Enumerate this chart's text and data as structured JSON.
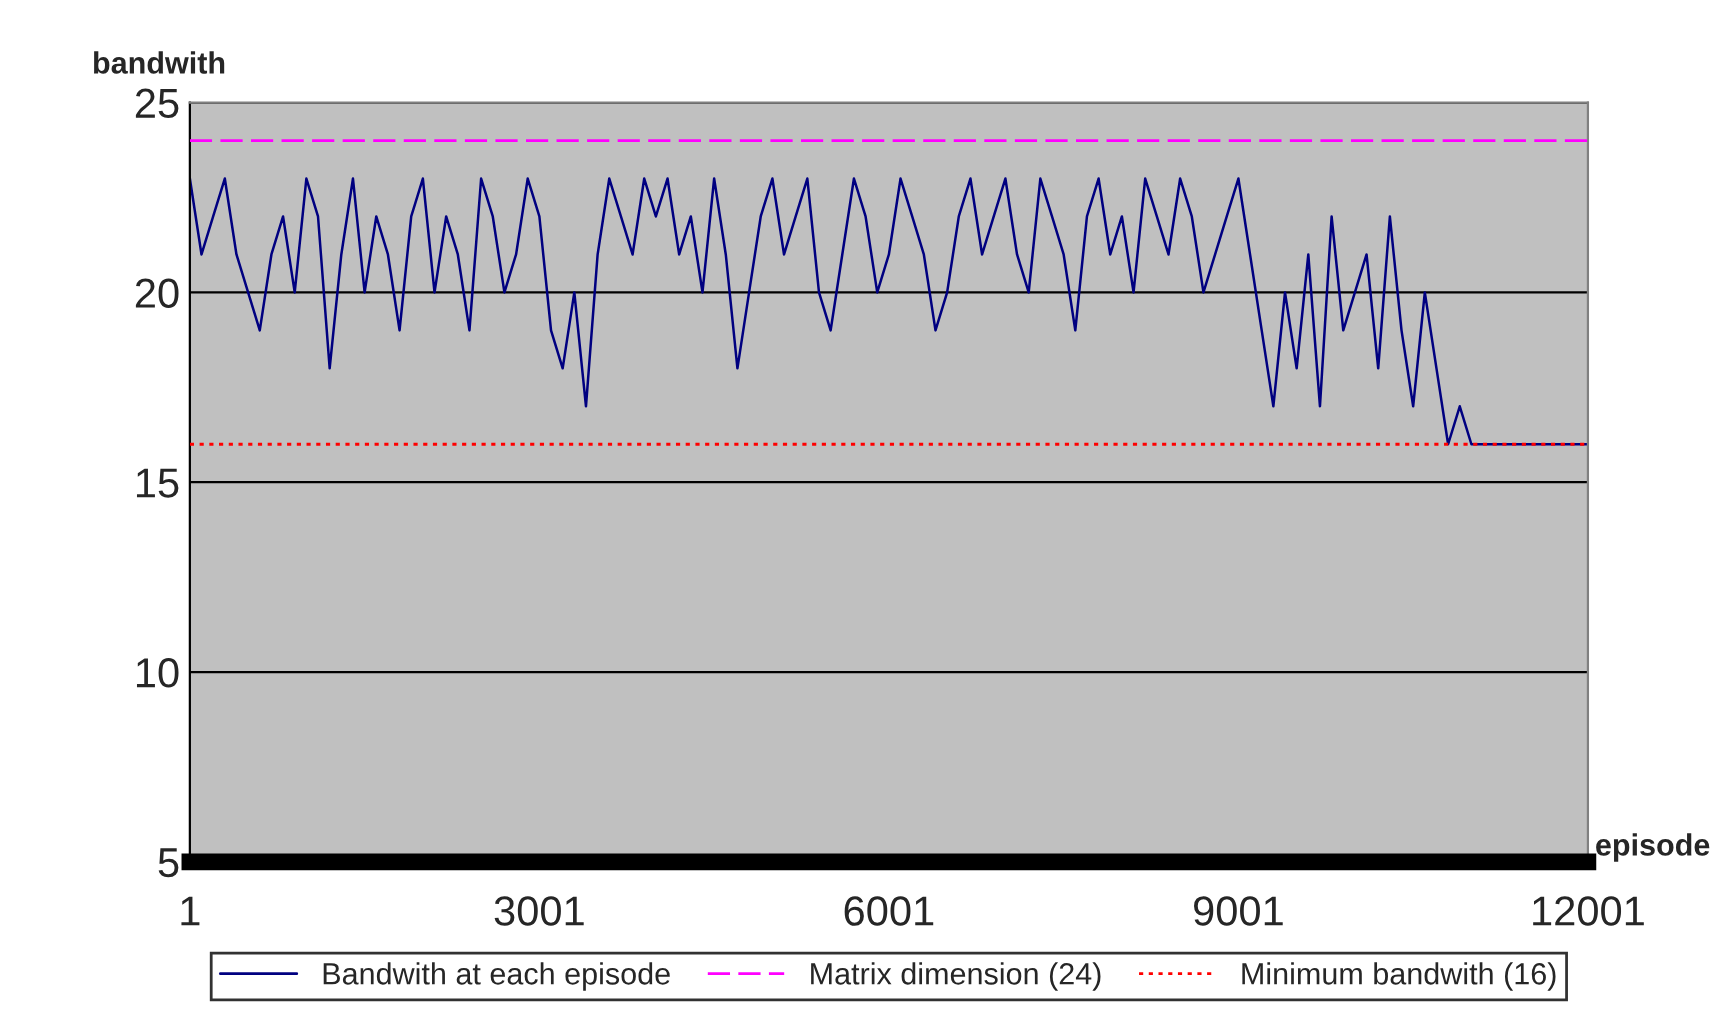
{
  "chart_data": {
    "type": "line",
    "xlabel": "episode",
    "ylabel": "bandwith",
    "x": [
      1,
      101,
      201,
      301,
      401,
      501,
      601,
      701,
      801,
      901,
      1001,
      1101,
      1201,
      1301,
      1401,
      1501,
      1601,
      1701,
      1801,
      1901,
      2001,
      2101,
      2201,
      2301,
      2401,
      2501,
      2601,
      2701,
      2801,
      2901,
      3001,
      3101,
      3201,
      3301,
      3401,
      3501,
      3601,
      3701,
      3801,
      3901,
      4001,
      4101,
      4201,
      4301,
      4401,
      4501,
      4601,
      4701,
      4801,
      4901,
      5001,
      5101,
      5201,
      5301,
      5401,
      5501,
      5601,
      5701,
      5801,
      5901,
      6001,
      6101,
      6201,
      6301,
      6401,
      6501,
      6601,
      6701,
      6801,
      6901,
      7001,
      7101,
      7201,
      7301,
      7401,
      7501,
      7601,
      7701,
      7801,
      7901,
      8001,
      8101,
      8201,
      8301,
      8401,
      8501,
      8601,
      8701,
      8801,
      8901,
      9001,
      9101,
      9201,
      9301,
      9401,
      9501,
      9601,
      9701,
      9801,
      9901,
      10001,
      10101,
      10201,
      10301,
      10401,
      10501,
      10601,
      10701,
      10801,
      10901,
      11001,
      11101,
      11201,
      11301,
      11401,
      11501,
      11601,
      11701,
      11801,
      11901,
      12001
    ],
    "series": [
      {
        "name": "Bandwith at each episode",
        "color": "#000080",
        "values": [
          23,
          21,
          22,
          23,
          21,
          20,
          19,
          21,
          22,
          20,
          23,
          22,
          18,
          21,
          23,
          20,
          22,
          21,
          19,
          22,
          23,
          20,
          22,
          21,
          19,
          23,
          22,
          20,
          21,
          23,
          22,
          19,
          18,
          20,
          17,
          21,
          23,
          22,
          21,
          23,
          22,
          23,
          21,
          22,
          20,
          23,
          21,
          18,
          20,
          22,
          23,
          21,
          22,
          23,
          20,
          19,
          21,
          23,
          22,
          20,
          21,
          23,
          22,
          21,
          19,
          20,
          22,
          23,
          21,
          22,
          23,
          21,
          20,
          23,
          22,
          21,
          19,
          22,
          23,
          21,
          22,
          20,
          23,
          22,
          21,
          23,
          22,
          20,
          21,
          22,
          23,
          21,
          19,
          17,
          20,
          18,
          21,
          17,
          22,
          19,
          20,
          21,
          18,
          22,
          19,
          17,
          20,
          18,
          16,
          17,
          16,
          16,
          16,
          16,
          16,
          16,
          16,
          16,
          16,
          16,
          16
        ]
      }
    ],
    "ref_lines": [
      {
        "axis": "y",
        "value": 24,
        "label": "Matrix dimension (24)",
        "color": "#ff00ff",
        "line_style": "dashed"
      },
      {
        "axis": "y",
        "value": 16,
        "label": "Minimum bandwith (16)",
        "color": "#ff0000",
        "line_style": "dotted"
      }
    ],
    "xlim": [
      1,
      12001
    ],
    "xticks": [
      1,
      3001,
      6001,
      9001,
      12001
    ],
    "ylim": [
      5,
      25
    ],
    "yticks": [
      5,
      10,
      15,
      20,
      25
    ],
    "grid": "y",
    "legend": "bottom"
  }
}
